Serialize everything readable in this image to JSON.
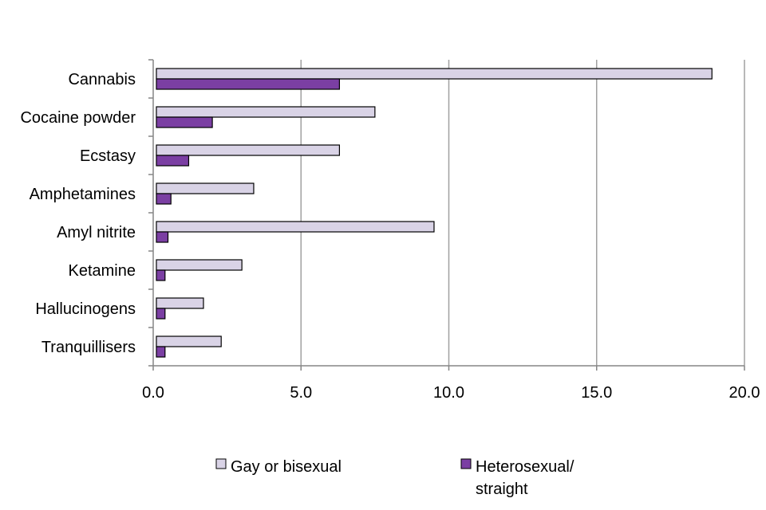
{
  "chart_data": {
    "type": "bar",
    "orientation": "horizontal",
    "title": "",
    "xlabel": "",
    "ylabel": "",
    "xlim": [
      0,
      20
    ],
    "x_ticks": [
      "0.0",
      "5.0",
      "10.0",
      "15.0",
      "20.0"
    ],
    "x_tick_values": [
      0,
      5,
      10,
      15,
      20
    ],
    "grid": "vertical",
    "categories": [
      "Cannabis",
      "Cocaine powder",
      "Ecstasy",
      "Amphetamines",
      "Amyl nitrite",
      "Ketamine",
      "Hallucinogens",
      "Tranquillisers"
    ],
    "series": [
      {
        "name": "Gay or bisexual",
        "color": "#d9d3e6",
        "values": [
          18.9,
          7.5,
          6.3,
          3.4,
          9.5,
          3.0,
          1.7,
          2.3
        ]
      },
      {
        "name": "Heterosexual/ straight",
        "color": "#7b3fa3",
        "values": [
          6.3,
          2.0,
          1.2,
          0.6,
          0.5,
          0.4,
          0.4,
          0.4
        ]
      }
    ],
    "legend": {
      "position": "bottom",
      "items": [
        {
          "label": "Gay or bisexual",
          "color": "#d9d3e6"
        },
        {
          "label_line1": "Heterosexual/",
          "label_line2": "straight",
          "color": "#7b3fa3"
        }
      ]
    }
  }
}
